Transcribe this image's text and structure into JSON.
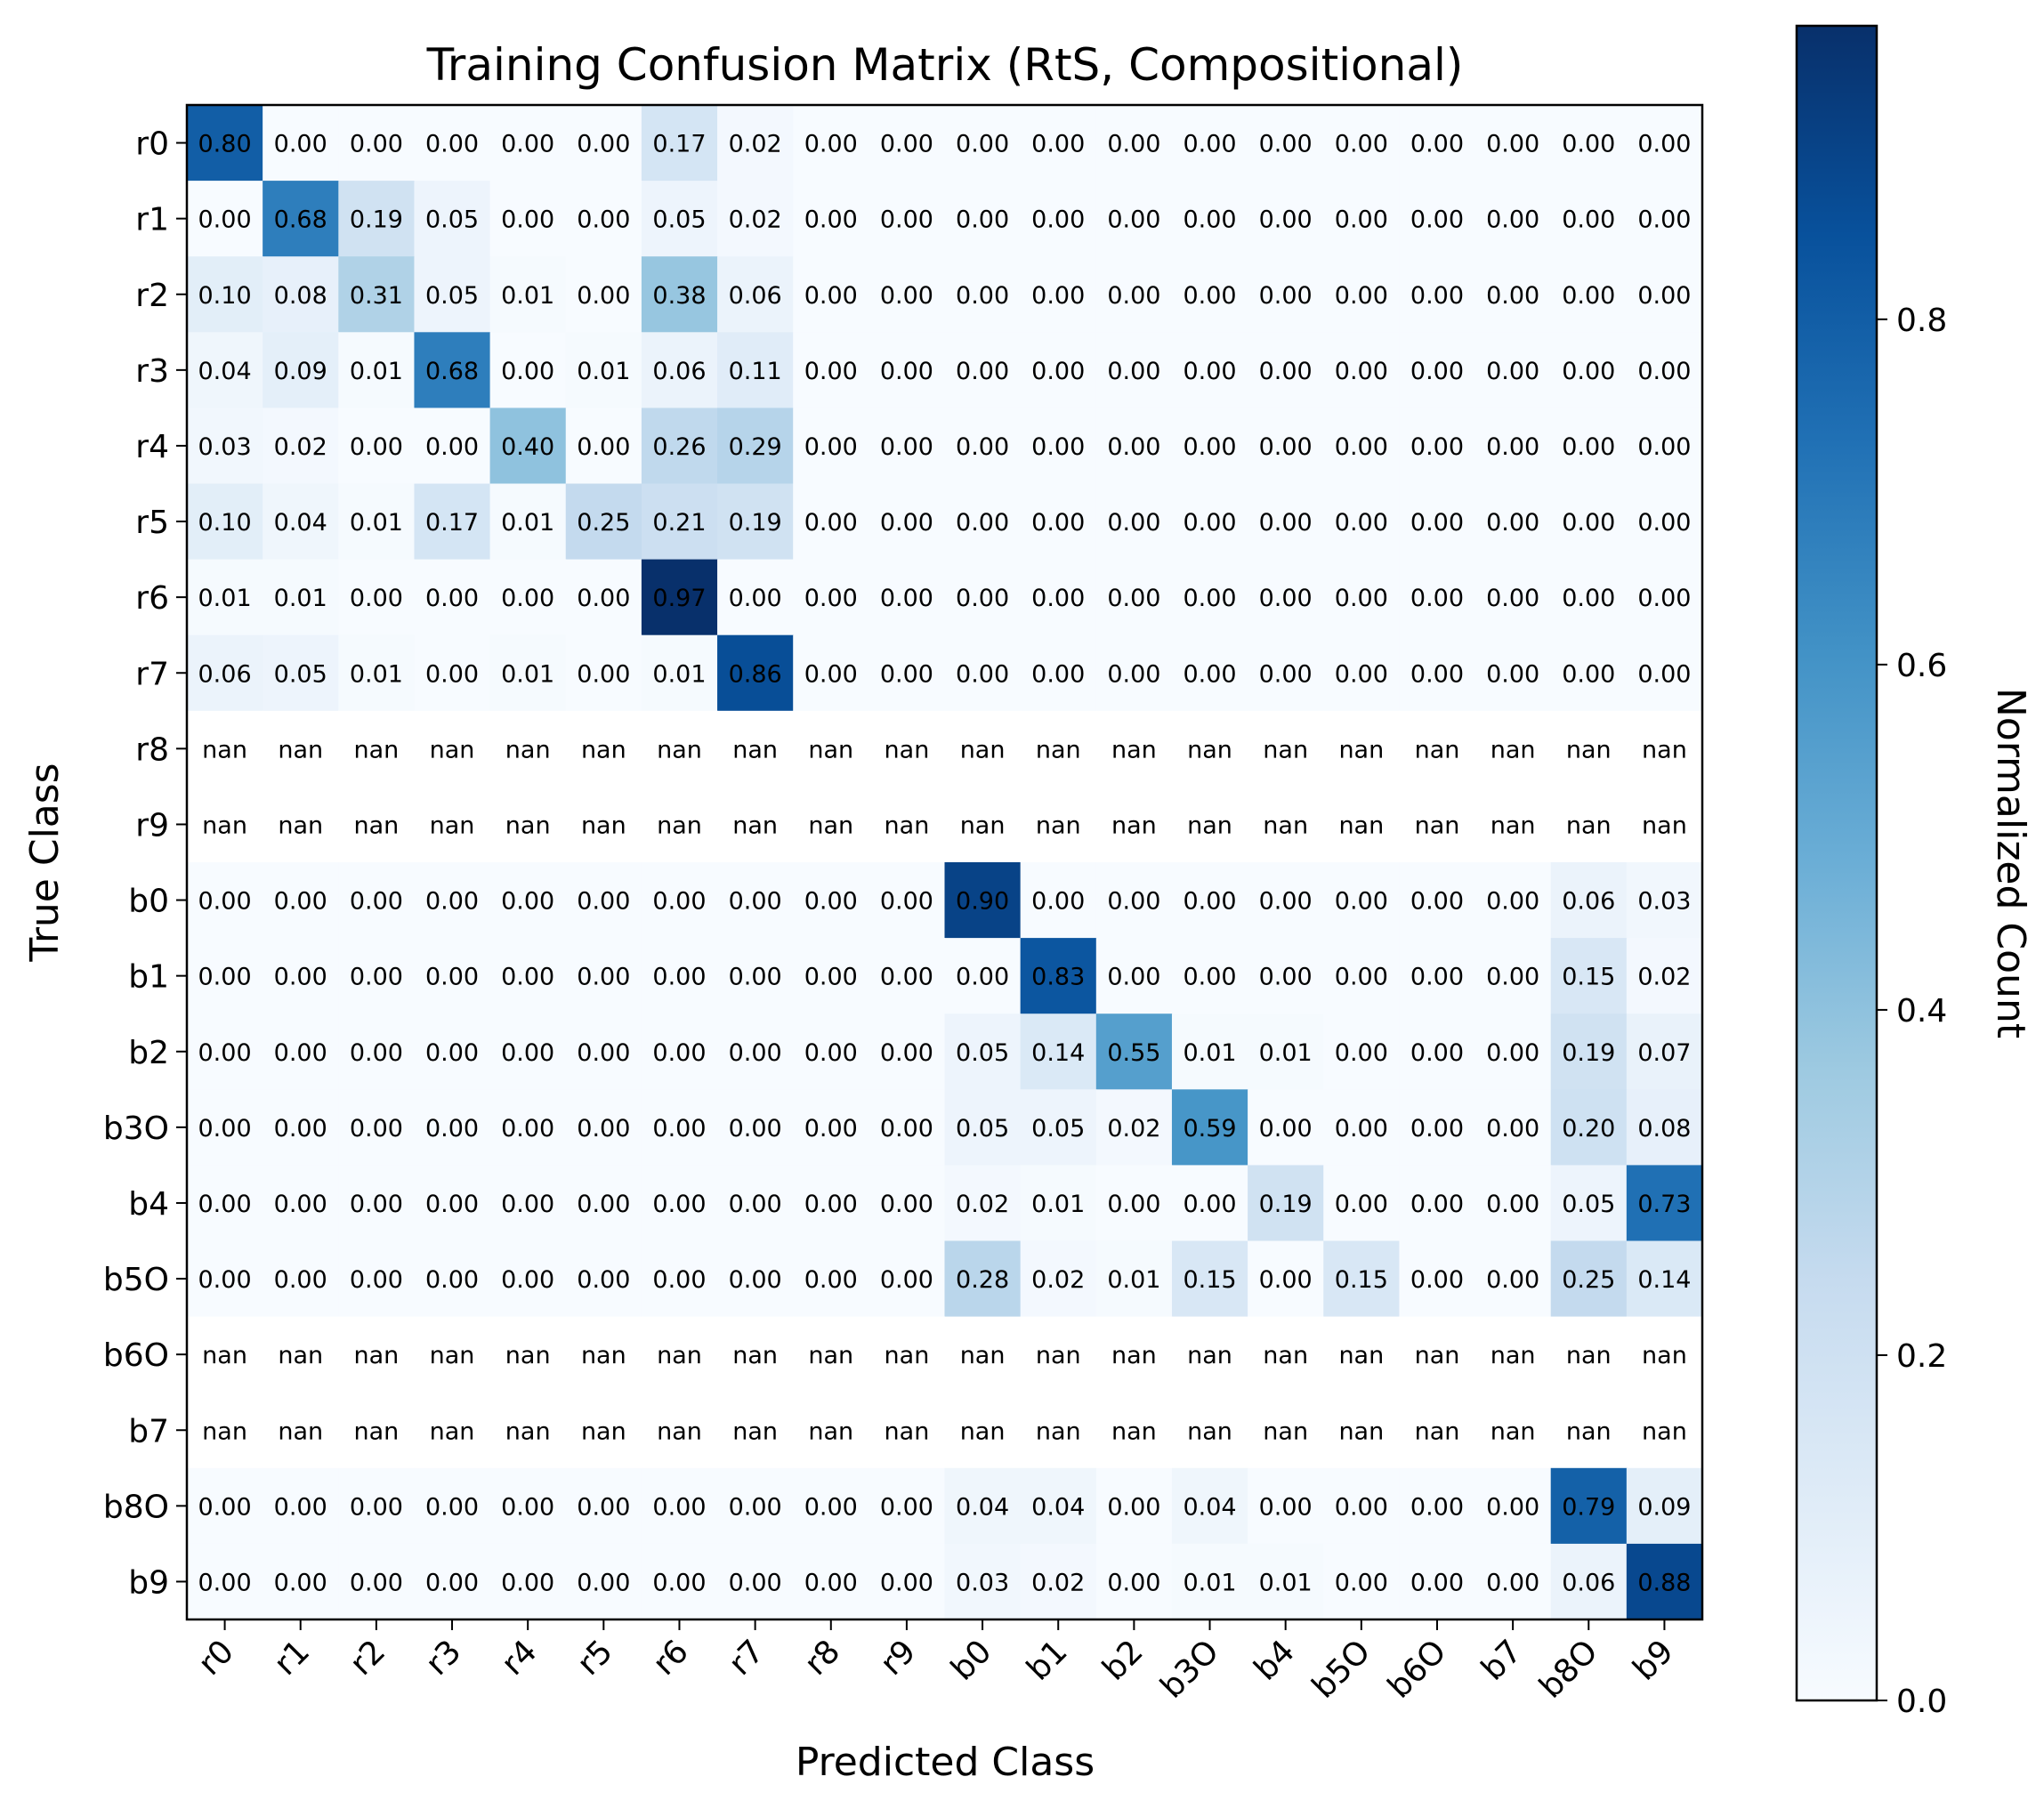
{
  "chart_data": {
    "type": "heatmap",
    "title": "Training Confusion Matrix (RtS, Compositional)",
    "xlabel": "Predicted Class",
    "ylabel": "True Class",
    "colorbar_label": "Normalized Count",
    "colorbar_range": [
      0,
      0.97
    ],
    "colorbar_ticks": [
      "0.0",
      "0.2",
      "0.4",
      "0.6",
      "0.8"
    ],
    "colormap": "Blues",
    "colormap_stops": [
      "#f7fbff",
      "#deebf7",
      "#c6dbef",
      "#9ecae1",
      "#6baed6",
      "#4292c6",
      "#2171b5",
      "#08519c",
      "#08306b"
    ],
    "nan_color": "#ffffff",
    "x_categories": [
      "r0",
      "r1",
      "r2",
      "r3",
      "r4",
      "r5",
      "r6",
      "r7",
      "r8",
      "r9",
      "b0",
      "b1",
      "b2",
      "b3O",
      "b4",
      "b5O",
      "b6O",
      "b7",
      "b8O",
      "b9"
    ],
    "y_categories": [
      "r0",
      "r1",
      "r2",
      "r3",
      "r4",
      "r5",
      "r6",
      "r7",
      "r8",
      "r9",
      "b0",
      "b1",
      "b2",
      "b3O",
      "b4",
      "b5O",
      "b6O",
      "b7",
      "b8O",
      "b9"
    ],
    "values": [
      [
        0.8,
        0.0,
        0.0,
        0.0,
        0.0,
        0.0,
        0.17,
        0.02,
        0.0,
        0.0,
        0.0,
        0.0,
        0.0,
        0.0,
        0.0,
        0.0,
        0.0,
        0.0,
        0.0,
        0.0
      ],
      [
        0.0,
        0.68,
        0.19,
        0.05,
        0.0,
        0.0,
        0.05,
        0.02,
        0.0,
        0.0,
        0.0,
        0.0,
        0.0,
        0.0,
        0.0,
        0.0,
        0.0,
        0.0,
        0.0,
        0.0
      ],
      [
        0.1,
        0.08,
        0.31,
        0.05,
        0.01,
        0.0,
        0.38,
        0.06,
        0.0,
        0.0,
        0.0,
        0.0,
        0.0,
        0.0,
        0.0,
        0.0,
        0.0,
        0.0,
        0.0,
        0.0
      ],
      [
        0.04,
        0.09,
        0.01,
        0.68,
        0.0,
        0.01,
        0.06,
        0.11,
        0.0,
        0.0,
        0.0,
        0.0,
        0.0,
        0.0,
        0.0,
        0.0,
        0.0,
        0.0,
        0.0,
        0.0
      ],
      [
        0.03,
        0.02,
        0.0,
        0.0,
        0.4,
        0.0,
        0.26,
        0.29,
        0.0,
        0.0,
        0.0,
        0.0,
        0.0,
        0.0,
        0.0,
        0.0,
        0.0,
        0.0,
        0.0,
        0.0
      ],
      [
        0.1,
        0.04,
        0.01,
        0.17,
        0.01,
        0.25,
        0.21,
        0.19,
        0.0,
        0.0,
        0.0,
        0.0,
        0.0,
        0.0,
        0.0,
        0.0,
        0.0,
        0.0,
        0.0,
        0.0
      ],
      [
        0.01,
        0.01,
        0.0,
        0.0,
        0.0,
        0.0,
        0.97,
        0.0,
        0.0,
        0.0,
        0.0,
        0.0,
        0.0,
        0.0,
        0.0,
        0.0,
        0.0,
        0.0,
        0.0,
        0.0
      ],
      [
        0.06,
        0.05,
        0.01,
        0.0,
        0.01,
        0.0,
        0.01,
        0.86,
        0.0,
        0.0,
        0.0,
        0.0,
        0.0,
        0.0,
        0.0,
        0.0,
        0.0,
        0.0,
        0.0,
        0.0
      ],
      [
        null,
        null,
        null,
        null,
        null,
        null,
        null,
        null,
        null,
        null,
        null,
        null,
        null,
        null,
        null,
        null,
        null,
        null,
        null,
        null
      ],
      [
        null,
        null,
        null,
        null,
        null,
        null,
        null,
        null,
        null,
        null,
        null,
        null,
        null,
        null,
        null,
        null,
        null,
        null,
        null,
        null
      ],
      [
        0.0,
        0.0,
        0.0,
        0.0,
        0.0,
        0.0,
        0.0,
        0.0,
        0.0,
        0.0,
        0.9,
        0.0,
        0.0,
        0.0,
        0.0,
        0.0,
        0.0,
        0.0,
        0.06,
        0.03
      ],
      [
        0.0,
        0.0,
        0.0,
        0.0,
        0.0,
        0.0,
        0.0,
        0.0,
        0.0,
        0.0,
        0.0,
        0.83,
        0.0,
        0.0,
        0.0,
        0.0,
        0.0,
        0.0,
        0.15,
        0.02
      ],
      [
        0.0,
        0.0,
        0.0,
        0.0,
        0.0,
        0.0,
        0.0,
        0.0,
        0.0,
        0.0,
        0.05,
        0.14,
        0.55,
        0.01,
        0.01,
        0.0,
        0.0,
        0.0,
        0.19,
        0.07
      ],
      [
        0.0,
        0.0,
        0.0,
        0.0,
        0.0,
        0.0,
        0.0,
        0.0,
        0.0,
        0.0,
        0.05,
        0.05,
        0.02,
        0.59,
        0.0,
        0.0,
        0.0,
        0.0,
        0.2,
        0.08
      ],
      [
        0.0,
        0.0,
        0.0,
        0.0,
        0.0,
        0.0,
        0.0,
        0.0,
        0.0,
        0.0,
        0.02,
        0.01,
        0.0,
        0.0,
        0.19,
        0.0,
        0.0,
        0.0,
        0.05,
        0.73
      ],
      [
        0.0,
        0.0,
        0.0,
        0.0,
        0.0,
        0.0,
        0.0,
        0.0,
        0.0,
        0.0,
        0.28,
        0.02,
        0.01,
        0.15,
        0.0,
        0.15,
        0.0,
        0.0,
        0.25,
        0.14
      ],
      [
        null,
        null,
        null,
        null,
        null,
        null,
        null,
        null,
        null,
        null,
        null,
        null,
        null,
        null,
        null,
        null,
        null,
        null,
        null,
        null
      ],
      [
        null,
        null,
        null,
        null,
        null,
        null,
        null,
        null,
        null,
        null,
        null,
        null,
        null,
        null,
        null,
        null,
        null,
        null,
        null,
        null
      ],
      [
        0.0,
        0.0,
        0.0,
        0.0,
        0.0,
        0.0,
        0.0,
        0.0,
        0.0,
        0.0,
        0.04,
        0.04,
        0.0,
        0.04,
        0.0,
        0.0,
        0.0,
        0.0,
        0.79,
        0.09
      ],
      [
        0.0,
        0.0,
        0.0,
        0.0,
        0.0,
        0.0,
        0.0,
        0.0,
        0.0,
        0.0,
        0.03,
        0.02,
        0.0,
        0.01,
        0.01,
        0.0,
        0.0,
        0.0,
        0.06,
        0.88
      ]
    ],
    "nan_text": "nan",
    "value_format_decimals": 2
  }
}
